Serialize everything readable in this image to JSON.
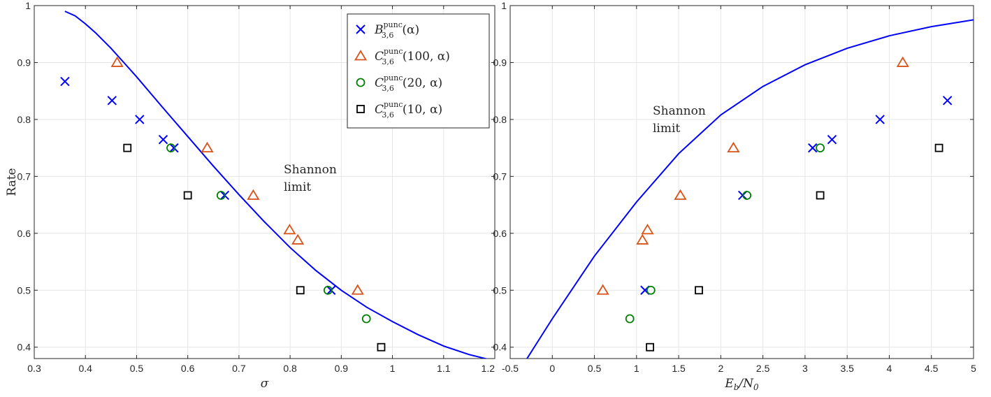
{
  "colors": {
    "blue": "#0000ff",
    "orange": "#d95319",
    "green": "#008000",
    "black": "#000000",
    "grid": "#e6e6e6"
  },
  "chart_data": [
    {
      "type": "scatter",
      "xlabel": "σ",
      "ylabel": "Rate",
      "xlim": [
        0.3,
        1.2
      ],
      "ylim": [
        0.38,
        1.0
      ],
      "xticks": [
        "0.3",
        "0.4",
        "0.5",
        "0.6",
        "0.7",
        "0.8",
        "0.9",
        "1",
        "1.1",
        "1.2"
      ],
      "yticks": [
        "0.4",
        "0.5",
        "0.6",
        "0.7",
        "0.8",
        "0.9",
        "1"
      ],
      "grid": true,
      "legend": {
        "position": "top-right",
        "entries": [
          {
            "family": "B",
            "sup": "punc",
            "sub": "3,6",
            "args": "(α)"
          },
          {
            "family": "C",
            "sup": "punc",
            "sub": "3,6",
            "args": "(100, α)"
          },
          {
            "family": "C",
            "sup": "punc",
            "sub": "3,6",
            "args": "(20, α)"
          },
          {
            "family": "C",
            "sup": "punc",
            "sub": "3,6",
            "args": "(10, α)"
          }
        ]
      },
      "annotation": {
        "line1": "Shannon",
        "line2": "limit"
      },
      "shannon_curve": {
        "x": [
          0.36,
          0.38,
          0.4,
          0.42,
          0.45,
          0.48,
          0.5,
          0.55,
          0.6,
          0.65,
          0.7,
          0.75,
          0.8,
          0.85,
          0.9,
          0.95,
          1.0,
          1.05,
          1.1,
          1.15,
          1.19
        ],
        "y": [
          0.99,
          0.982,
          0.968,
          0.952,
          0.925,
          0.895,
          0.875,
          0.822,
          0.77,
          0.718,
          0.668,
          0.62,
          0.575,
          0.535,
          0.5,
          0.47,
          0.445,
          0.422,
          0.402,
          0.387,
          0.378
        ]
      },
      "series": [
        {
          "marker": "x",
          "color": "blue",
          "x": [
            0.36,
            0.452,
            0.506,
            0.552,
            0.573,
            0.672,
            0.88
          ],
          "y": [
            0.8667,
            0.8333,
            0.8,
            0.7647,
            0.75,
            0.6667,
            0.5
          ]
        },
        {
          "marker": "triangle",
          "color": "orange",
          "x": [
            0.462,
            0.638,
            0.728,
            0.799,
            0.815,
            0.932
          ],
          "y": [
            0.9,
            0.75,
            0.6667,
            0.6061,
            0.5882,
            0.5
          ]
        },
        {
          "marker": "circle",
          "color": "green",
          "x": [
            0.567,
            0.665,
            0.874,
            0.949
          ],
          "y": [
            0.75,
            0.6667,
            0.5,
            0.45
          ]
        },
        {
          "marker": "square",
          "color": "black",
          "x": [
            0.482,
            0.6,
            0.82,
            0.978
          ],
          "y": [
            0.75,
            0.6667,
            0.5,
            0.4
          ]
        }
      ]
    },
    {
      "type": "scatter",
      "xlabel": "Eb/N0",
      "xlim": [
        -0.5,
        5
      ],
      "ylim": [
        0.38,
        1.0
      ],
      "xticks": [
        "-0.5",
        "0",
        "0.5",
        "1",
        "1.5",
        "2",
        "2.5",
        "3",
        "3.5",
        "4",
        "4.5",
        "5"
      ],
      "yticks": [
        "0.4",
        "0.5",
        "0.6",
        "0.7",
        "0.8",
        "0.9",
        "1"
      ],
      "grid": true,
      "annotation": {
        "line1": "Shannon",
        "line2": "limit"
      },
      "shannon_curve": {
        "x": [
          -0.3,
          0,
          0.5,
          1,
          1.5,
          2,
          2.5,
          3,
          3.5,
          4,
          4.5,
          5
        ],
        "y": [
          0.38,
          0.45,
          0.56,
          0.655,
          0.74,
          0.808,
          0.858,
          0.896,
          0.925,
          0.947,
          0.963,
          0.975
        ]
      },
      "series": [
        {
          "marker": "x",
          "color": "blue",
          "x": [
            1.1,
            2.26,
            3.09,
            3.32,
            3.89,
            4.69
          ],
          "y": [
            0.5,
            0.6667,
            0.75,
            0.7647,
            0.8,
            0.8333
          ]
        },
        {
          "marker": "triangle",
          "color": "orange",
          "x": [
            0.6,
            1.07,
            1.13,
            1.52,
            2.15,
            4.16
          ],
          "y": [
            0.5,
            0.5882,
            0.6061,
            0.6667,
            0.75,
            0.9
          ]
        },
        {
          "marker": "circle",
          "color": "green",
          "x": [
            0.92,
            1.17,
            2.31,
            3.18
          ],
          "y": [
            0.45,
            0.5,
            0.6667,
            0.75
          ]
        },
        {
          "marker": "square",
          "color": "black",
          "x": [
            1.16,
            1.74,
            3.18,
            4.59
          ],
          "y": [
            0.4,
            0.5,
            0.6667,
            0.75
          ]
        }
      ]
    }
  ]
}
